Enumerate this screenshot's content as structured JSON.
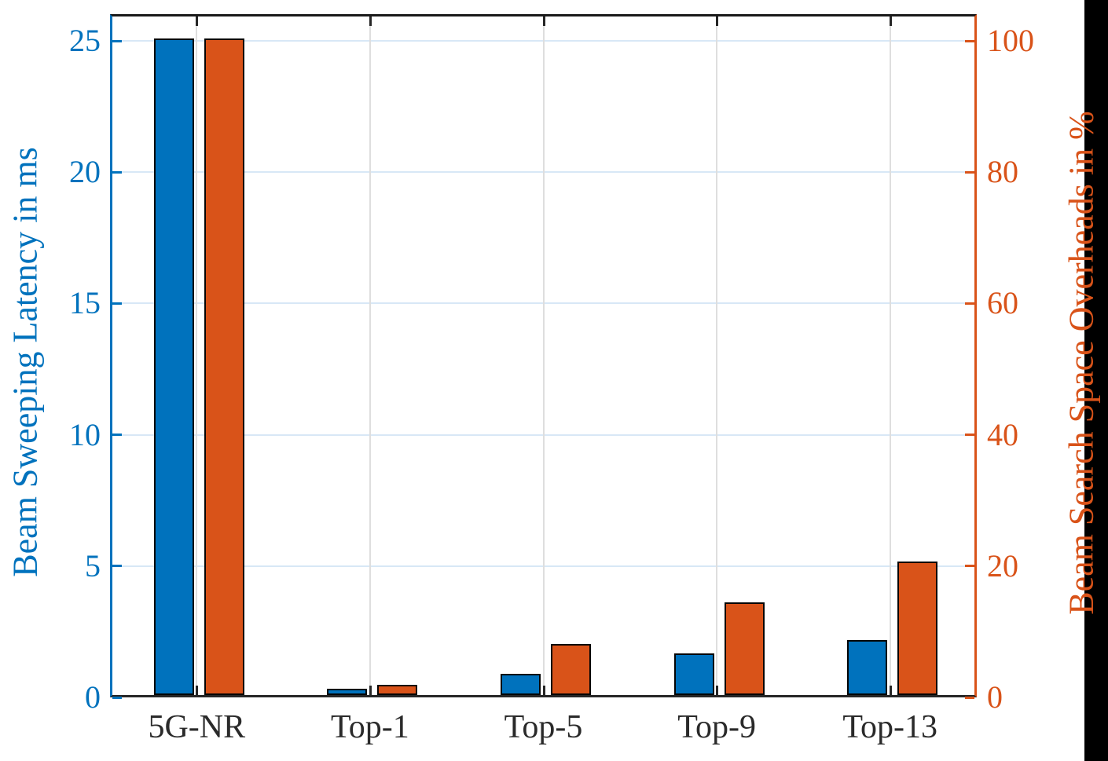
{
  "chart_data": {
    "type": "bar",
    "categories": [
      "5G-NR",
      "Top-1",
      "Top-5",
      "Top-9",
      "Top-13"
    ],
    "series": [
      {
        "name": "Beam Sweeping Latency in ms",
        "axis": "left",
        "color": "#0072BD",
        "values": [
          25,
          0.25,
          0.8,
          1.6,
          2.1
        ]
      },
      {
        "name": "Beam Search Space Overheads in %",
        "axis": "right",
        "color": "#D95319",
        "values": [
          100,
          1.6,
          7.8,
          14.1,
          20.3
        ]
      }
    ],
    "left_axis": {
      "label": "Beam Sweeping Latency in ms",
      "color": "#0072BD",
      "ticks": [
        0,
        5,
        10,
        15,
        20,
        25
      ],
      "range": [
        0,
        26
      ]
    },
    "right_axis": {
      "label": "Beam Search Space Overheads in %",
      "color": "#D95319",
      "ticks": [
        0,
        20,
        40,
        60,
        80,
        100
      ],
      "range": [
        0,
        104
      ]
    },
    "title": "",
    "xlabel": "",
    "legend": "none",
    "grid": {
      "horizontal": true,
      "vertical": true
    },
    "bar_edge_color": "#000000"
  }
}
